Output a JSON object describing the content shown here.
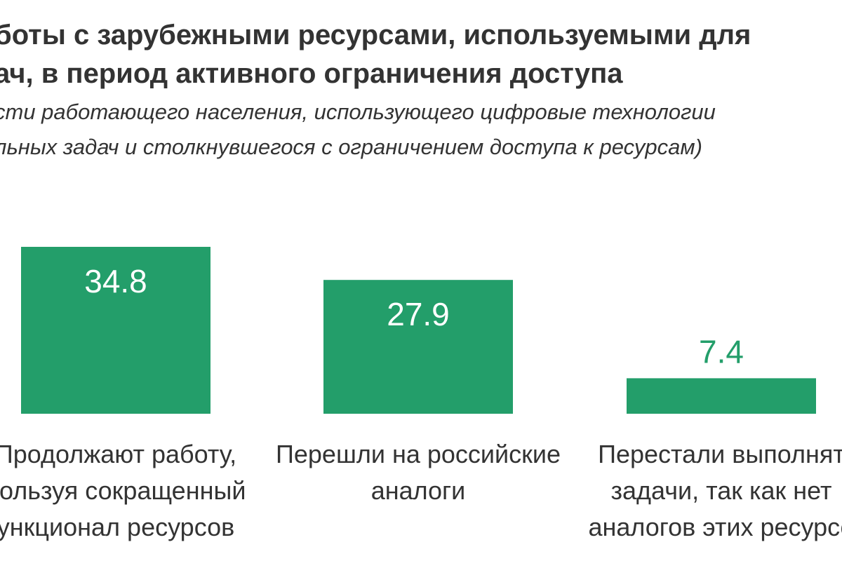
{
  "chart_data": {
    "type": "bar",
    "title_lines": [
      "боты с зарубежными ресурсами, используемыми для",
      "ач, в период активного ограничения доступа"
    ],
    "subtitle_lines": [
      "сти работающего населения, использующего цифровые технологии",
      "льных задач и столкнувшегося с ограничением доступа к ресурсам)"
    ],
    "categories": [
      [
        "Продолжают работу,",
        "пользуя сокращенный",
        "ункционал ресурсов"
      ],
      [
        "Перешли на российские",
        "аналоги"
      ],
      [
        "Перестали выполнят",
        "задачи, так как нет",
        "аналогов этих ресурсо"
      ]
    ],
    "values": [
      34.8,
      27.9,
      7.4
    ],
    "data_labels": [
      "34.8",
      "27.9",
      "7.4"
    ],
    "ylim": [
      0,
      40
    ],
    "grid": false,
    "legend": "none",
    "colors": {
      "bar": "#239e6a",
      "label_inside": "#ffffff",
      "label_outside": "#239e6a",
      "text": "#333333"
    }
  }
}
